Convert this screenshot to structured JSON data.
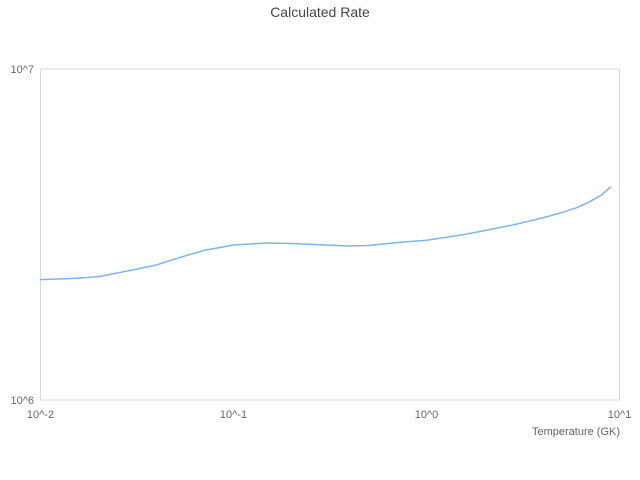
{
  "title": "Calculated Rate",
  "colors": {
    "background": "#ffffff",
    "line": "#7cb5ec",
    "plot_border": "#d8d8d8",
    "title_text": "#454545",
    "tick_text": "#666666"
  },
  "chart_data": {
    "type": "line",
    "title": "Calculated Rate",
    "xlabel": "Temperature (GK)",
    "ylabel": "",
    "x_scale": "log",
    "y_scale": "log",
    "xlim": [
      0.01,
      10
    ],
    "ylim": [
      1000000,
      10000000
    ],
    "grid": false,
    "legend": false,
    "x_ticks": [
      {
        "value": 0.01,
        "label": "10^-2"
      },
      {
        "value": 0.1,
        "label": "10^-1"
      },
      {
        "value": 1,
        "label": "10^0"
      },
      {
        "value": 10,
        "label": "10^1"
      }
    ],
    "y_ticks": [
      {
        "value": 1000000,
        "label": "10^6"
      },
      {
        "value": 10000000,
        "label": "10^7"
      }
    ],
    "series": [
      {
        "name": "Calculated Rate",
        "color": "#7cb5ec",
        "x": [
          0.01,
          0.015,
          0.02,
          0.03,
          0.04,
          0.05,
          0.07,
          0.1,
          0.15,
          0.2,
          0.3,
          0.4,
          0.5,
          0.7,
          1.0,
          1.5,
          2.0,
          3.0,
          4.0,
          5.0,
          6.0,
          7.0,
          8.0,
          9.0
        ],
        "y": [
          2310000,
          2330000,
          2360000,
          2470000,
          2560000,
          2670000,
          2830000,
          2940000,
          2980000,
          2970000,
          2940000,
          2920000,
          2930000,
          2990000,
          3040000,
          3150000,
          3250000,
          3410000,
          3550000,
          3680000,
          3810000,
          3970000,
          4150000,
          4400000
        ]
      }
    ]
  }
}
